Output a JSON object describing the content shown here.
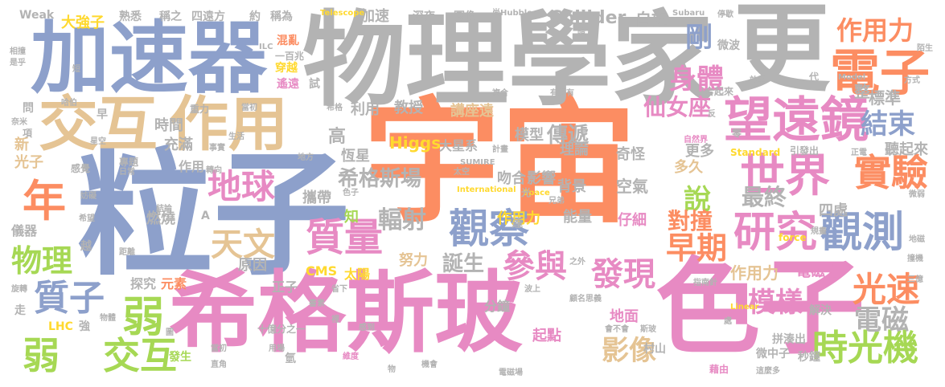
{
  "palette": {
    "orange": "#fc8d62",
    "blue": "#8da0cb",
    "pink": "#e78ac3",
    "green": "#a6d854",
    "yellow": "#ffd92f",
    "tan": "#e5c494",
    "gray": "#b3b3b3",
    "teal": "#66c2a5"
  },
  "words": [
    {
      "text": "宇宙",
      "color": "orange"
    },
    {
      "text": "粒子",
      "color": "blue"
    },
    {
      "text": "希格斯玻",
      "color": "pink"
    },
    {
      "text": "色子",
      "color": "pink"
    },
    {
      "text": "物理學家",
      "color": "gray"
    },
    {
      "text": "更",
      "color": "gray"
    },
    {
      "text": "加速器",
      "color": "blue"
    },
    {
      "text": "交互",
      "color": "tan"
    },
    {
      "text": "作用",
      "color": "tan"
    },
    {
      "text": "望遠鏡",
      "color": "pink"
    },
    {
      "text": "電子",
      "color": "orange"
    },
    {
      "text": "世界",
      "color": "pink"
    },
    {
      "text": "研究",
      "color": "pink"
    },
    {
      "text": "觀測",
      "color": "blue"
    },
    {
      "text": "觀察",
      "color": "blue"
    },
    {
      "text": "質量",
      "color": "pink"
    },
    {
      "text": "年",
      "color": "orange"
    },
    {
      "text": "實驗",
      "color": "orange"
    },
    {
      "text": "時光機",
      "color": "green"
    },
    {
      "text": "弱",
      "color": "green"
    },
    {
      "text": "質子",
      "color": "blue"
    },
    {
      "text": "交互",
      "color": "green"
    },
    {
      "text": "弱",
      "color": "green"
    },
    {
      "text": "物理",
      "color": "green"
    },
    {
      "text": "天文",
      "color": "tan"
    },
    {
      "text": "地球",
      "color": "pink"
    },
    {
      "text": "發現",
      "color": "pink"
    },
    {
      "text": "光速",
      "color": "orange"
    },
    {
      "text": "參與",
      "color": "pink"
    },
    {
      "text": "早期",
      "color": "orange"
    },
    {
      "text": "作用力",
      "color": "orange"
    },
    {
      "text": "電磁",
      "color": "gray"
    },
    {
      "text": "模樣",
      "color": "pink"
    },
    {
      "text": "影像",
      "color": "tan"
    },
    {
      "text": "剛",
      "color": "blue"
    },
    {
      "text": "身體",
      "color": "pink"
    },
    {
      "text": "結束",
      "color": "blue"
    },
    {
      "text": "說",
      "color": "green"
    },
    {
      "text": "對撞",
      "color": "orange"
    },
    {
      "text": "最終",
      "color": "gray"
    },
    {
      "text": "輻射",
      "color": "gray"
    },
    {
      "text": "誕生",
      "color": "gray"
    },
    {
      "text": "仙女座",
      "color": "pink"
    },
    {
      "text": "希格斯場",
      "color": "gray"
    },
    {
      "text": "傳遞",
      "color": "gray"
    },
    {
      "text": "Collider",
      "color": "gray"
    },
    {
      "text": "Higgs",
      "color": "yellow"
    },
    {
      "text": "自旋",
      "color": "gray"
    },
    {
      "text": "作用力",
      "color": "tan"
    },
    {
      "text": "標準",
      "color": "gray"
    },
    {
      "text": "整",
      "color": "gray"
    },
    {
      "text": "聽起來",
      "color": "gray"
    },
    {
      "text": "四處",
      "color": "gray"
    },
    {
      "text": "電磁力",
      "color": "pink"
    },
    {
      "text": "作用力",
      "color": "yellow"
    },
    {
      "text": "空氣",
      "color": "gray"
    },
    {
      "text": "背景",
      "color": "gray"
    },
    {
      "text": "能量",
      "color": "gray"
    },
    {
      "text": "仔細",
      "color": "pink"
    },
    {
      "text": "奇怪",
      "color": "gray"
    },
    {
      "text": "影響",
      "color": "gray"
    },
    {
      "text": "吻合",
      "color": "gray"
    },
    {
      "text": "更多",
      "color": "gray"
    },
    {
      "text": "多久",
      "color": "tan"
    },
    {
      "text": "理論",
      "color": "gray"
    },
    {
      "text": "模型",
      "color": "gray"
    },
    {
      "text": "講座遠",
      "color": "tan"
    },
    {
      "text": "教授",
      "color": "gray"
    },
    {
      "text": "利用",
      "color": "gray"
    },
    {
      "text": "高",
      "color": "gray"
    },
    {
      "text": "恆星",
      "color": "gray"
    },
    {
      "text": "大星系",
      "color": "gray"
    },
    {
      "text": "攜帶",
      "color": "gray"
    },
    {
      "text": "知",
      "color": "green"
    },
    {
      "text": "燃燒",
      "color": "gray"
    },
    {
      "text": "儀器",
      "color": "gray"
    },
    {
      "text": "新",
      "color": "tan"
    },
    {
      "text": "光子",
      "color": "tan"
    },
    {
      "text": "充滿",
      "color": "gray"
    },
    {
      "text": "時間",
      "color": "gray"
    },
    {
      "text": "作用",
      "color": "gray"
    },
    {
      "text": "原因",
      "color": "gray"
    },
    {
      "text": "CMS",
      "color": "yellow"
    },
    {
      "text": "太陽",
      "color": "yellow"
    },
    {
      "text": "努力",
      "color": "tan"
    },
    {
      "text": "正子",
      "color": "gray"
    },
    {
      "text": "探究",
      "color": "gray"
    },
    {
      "text": "元素",
      "color": "orange"
    },
    {
      "text": "LHC",
      "color": "yellow"
    },
    {
      "text": "強",
      "color": "gray"
    },
    {
      "text": "起點",
      "color": "pink"
    },
    {
      "text": "分鐘",
      "color": "gray"
    },
    {
      "text": "地面",
      "color": "pink"
    },
    {
      "text": "村山",
      "color": "gray"
    },
    {
      "text": "微中子",
      "color": "gray"
    },
    {
      "text": "秒鐘",
      "color": "gray"
    },
    {
      "text": "解決",
      "color": "gray"
    },
    {
      "text": "拼湊出",
      "color": "gray"
    },
    {
      "text": "發生",
      "color": "green"
    },
    {
      "text": "氫",
      "color": "gray"
    },
    {
      "text": "大強子",
      "color": "yellow"
    },
    {
      "text": "熟悉",
      "color": "gray"
    },
    {
      "text": "稱之",
      "color": "gray"
    },
    {
      "text": "四遠方",
      "color": "gray"
    },
    {
      "text": "約",
      "color": "gray"
    },
    {
      "text": "稱為",
      "color": "gray"
    },
    {
      "text": "加速",
      "color": "gray"
    },
    {
      "text": "深夜",
      "color": "gray"
    },
    {
      "text": "圖像",
      "color": "gray"
    },
    {
      "text": "混亂",
      "color": "orange"
    },
    {
      "text": "穿越",
      "color": "yellow"
    },
    {
      "text": "遙遠",
      "color": "pink"
    },
    {
      "text": "試",
      "color": "gray"
    },
    {
      "text": "一百兆",
      "color": "gray"
    },
    {
      "text": "微波",
      "color": "gray"
    },
    {
      "text": "早",
      "color": "gray"
    },
    {
      "text": "問",
      "color": "gray"
    },
    {
      "text": "走",
      "color": "gray"
    },
    {
      "text": "Weak",
      "color": "gray"
    },
    {
      "text": "Telescope",
      "color": "yellow"
    },
    {
      "text": "Subaru",
      "color": "gray"
    },
    {
      "text": "Standard",
      "color": "yellow"
    },
    {
      "text": "International",
      "color": "yellow"
    },
    {
      "text": "Space",
      "color": "yellow"
    },
    {
      "text": "SUMIRE",
      "color": "gray"
    },
    {
      "text": "Model",
      "color": "gray"
    },
    {
      "text": "force",
      "color": "yellow"
    },
    {
      "text": "Linear",
      "color": "yellow"
    },
    {
      "text": "ILC",
      "color": "gray"
    },
    {
      "text": "尚Hubble",
      "color": "gray"
    },
    {
      "text": "十億分之一",
      "color": "gray"
    },
    {
      "text": "引發出",
      "color": "gray"
    },
    {
      "text": "自然界",
      "color": "pink"
    },
    {
      "text": "指南針",
      "color": "gray"
    },
    {
      "text": "顧名思義",
      "color": "gray"
    },
    {
      "text": "會不會",
      "color": "gray"
    },
    {
      "text": "斯玻",
      "color": "gray"
    },
    {
      "text": "電磁場",
      "color": "gray"
    },
    {
      "text": "藉由",
      "color": "pink"
    },
    {
      "text": "這麼多",
      "color": "gray"
    },
    {
      "text": "維度",
      "color": "pink"
    },
    {
      "text": "機會",
      "color": "gray"
    },
    {
      "text": "物",
      "color": "gray"
    },
    {
      "text": "光",
      "color": "gray"
    },
    {
      "text": "代",
      "color": "gray"
    },
    {
      "text": "方式",
      "color": "gray"
    },
    {
      "text": "項",
      "color": "gray"
    },
    {
      "text": "短",
      "color": "gray"
    },
    {
      "text": "奈米",
      "color": "gray"
    },
    {
      "text": "相撞",
      "color": "gray"
    },
    {
      "text": "是乎",
      "color": "gray"
    },
    {
      "text": "哈伯",
      "color": "gray"
    },
    {
      "text": "星空",
      "color": "gray"
    },
    {
      "text": "日常",
      "color": "gray"
    },
    {
      "text": "感覺",
      "color": "gray"
    },
    {
      "text": "專題",
      "color": "gray"
    },
    {
      "text": "結論",
      "color": "gray"
    },
    {
      "text": "希望",
      "color": "gray"
    },
    {
      "text": "距離",
      "color": "gray"
    },
    {
      "text": "物體",
      "color": "gray"
    },
    {
      "text": "旋轉",
      "color": "gray"
    },
    {
      "text": "當初",
      "color": "gray"
    },
    {
      "text": "轉向",
      "color": "gray"
    },
    {
      "text": "事實",
      "color": "gray"
    },
    {
      "text": "微弱",
      "color": "gray"
    },
    {
      "text": "地磁",
      "color": "gray"
    },
    {
      "text": "撞機",
      "color": "gray"
    },
    {
      "text": "三億",
      "color": "gray"
    },
    {
      "text": "停歇",
      "color": "gray"
    },
    {
      "text": "陌生",
      "color": "gray"
    },
    {
      "text": "正電",
      "color": "gray"
    },
    {
      "text": "規畫",
      "color": "gray"
    },
    {
      "text": "合起來",
      "color": "gray"
    },
    {
      "text": "有沒有",
      "color": "gray"
    },
    {
      "text": "複合",
      "color": "gray"
    },
    {
      "text": "暗",
      "color": "gray"
    },
    {
      "text": "效率",
      "color": "gray"
    },
    {
      "text": "兄弟",
      "color": "gray"
    },
    {
      "text": "太空",
      "color": "gray"
    },
    {
      "text": "計畫",
      "color": "gray"
    },
    {
      "text": "之外",
      "color": "gray"
    },
    {
      "text": "波上",
      "color": "gray"
    },
    {
      "text": "省下",
      "color": "gray"
    },
    {
      "text": "書素",
      "color": "gray"
    },
    {
      "text": "裡",
      "color": "gray"
    },
    {
      "text": "感到",
      "color": "gray"
    },
    {
      "text": "用場",
      "color": "gray"
    },
    {
      "text": "圖",
      "color": "gray"
    },
    {
      "text": "直角",
      "color": "gray"
    },
    {
      "text": "處",
      "color": "gray"
    },
    {
      "text": "反",
      "color": "gray"
    },
    {
      "text": "零",
      "color": "gray"
    },
    {
      "text": "達",
      "color": "gray"
    },
    {
      "text": "A",
      "color": "gray"
    },
    {
      "text": "越",
      "color": "gray"
    },
    {
      "text": "生活",
      "color": "gray"
    },
    {
      "text": "地方",
      "color": "gray"
    },
    {
      "text": "妨礙",
      "color": "gray"
    },
    {
      "text": "色子",
      "color": "gray"
    },
    {
      "text": "當初",
      "color": "gray"
    },
    {
      "text": "希格",
      "color": "gray"
    },
    {
      "text": "重力",
      "color": "gray"
    }
  ]
}
